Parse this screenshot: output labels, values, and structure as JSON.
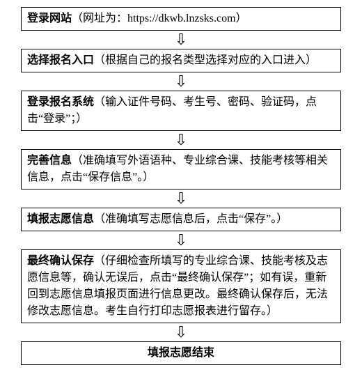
{
  "flow": {
    "type": "flowchart",
    "background_color": "#ffffff",
    "border_color": "#000000",
    "text_color": "#000000",
    "font_family": "SimSun",
    "title_fontsize": 16,
    "desc_fontsize": 16,
    "arrow_glyph": "⇩",
    "steps": [
      {
        "title": "登录网站",
        "desc": "（网址为：https://dkwb.lnzsks.com）",
        "center": false
      },
      {
        "title": "选择报名入口",
        "desc": "（根据自己的报名类型选择对应的入口进入）",
        "center": false
      },
      {
        "title": "登录报名系统",
        "desc": "（输入证件号码、考生号、密码、验证码，点击“登录”；）",
        "center": false
      },
      {
        "title": "完善信息",
        "desc": "（准确填写外语语种、专业综合课、技能考核等相关信息，点击“保存信息”。）",
        "center": false
      },
      {
        "title": "填报志愿信息",
        "desc": "（准确填写志愿信息后，点击“保存”。）",
        "center": false
      },
      {
        "title": "最终确认保存",
        "desc": "（仔细检查所填写的专业综合课、技能考核及志愿信息等，确认无误后，点击“最终确认保存”；如有误，重新回到志愿信息填报页面进行信息更改。最终确认保存后，无法修改志愿信息。考生自行打印志愿报表进行留存。）",
        "center": false
      },
      {
        "title": "填报志愿结束",
        "desc": "",
        "center": true
      }
    ]
  }
}
